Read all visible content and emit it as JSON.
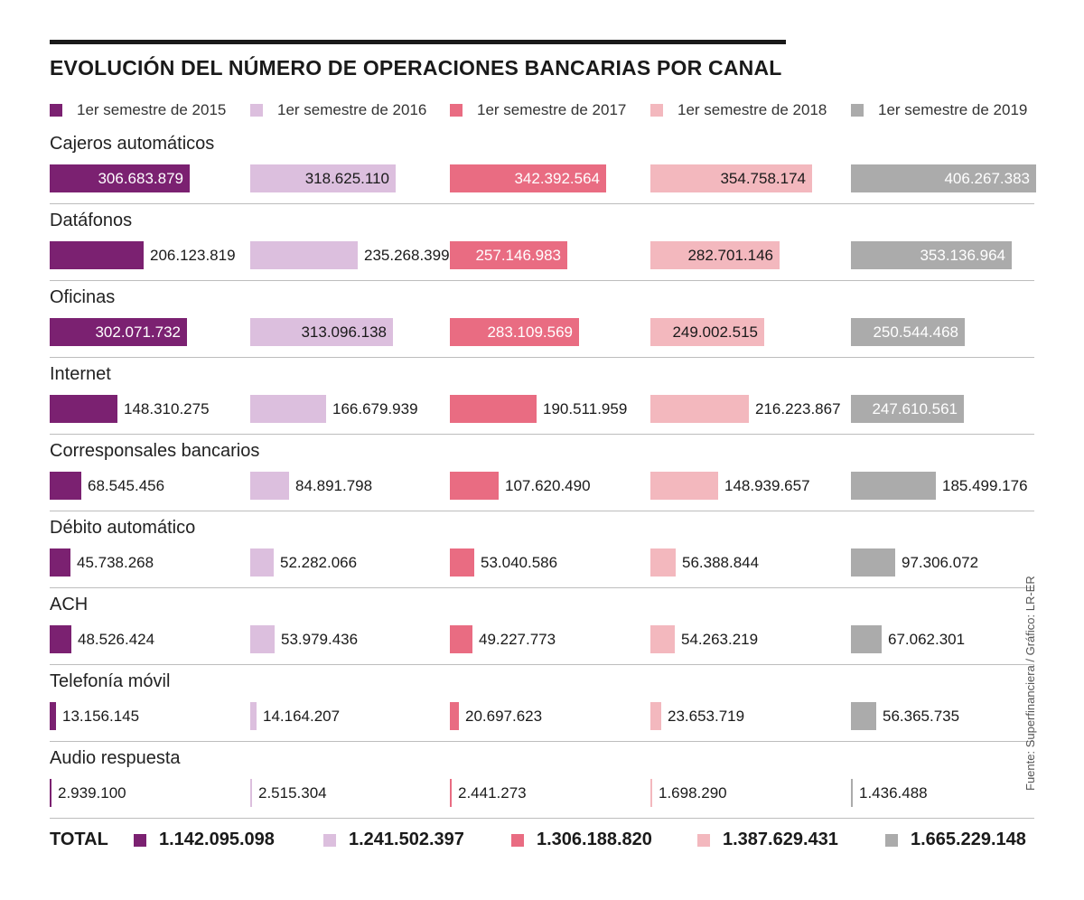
{
  "chart_data": {
    "type": "bar",
    "title": "EVOLUCIÓN DEL NÚMERO DE OPERACIONES BANCARIAS POR CANAL",
    "source": "Fuente: Superfinanciera / Gráfico: LR-ER",
    "colors": [
      "#7b2171",
      "#dcbfde",
      "#e96c82",
      "#f3b8be",
      "#ababab"
    ],
    "series": [
      {
        "name": "1er semestre de 2015"
      },
      {
        "name": "1er semestre de 2016"
      },
      {
        "name": "1er semestre de 2017"
      },
      {
        "name": "1er semestre de 2018"
      },
      {
        "name": "1er semestre de 2019"
      }
    ],
    "categories": [
      {
        "name": "Cajeros automáticos",
        "values": [
          306683879,
          318625110,
          342392564,
          354758174,
          406267383
        ],
        "labels": [
          "306.683.879",
          "318.625.110",
          "342.392.564",
          "354.758.174",
          "406.267.383"
        ]
      },
      {
        "name": "Datáfonos",
        "values": [
          206123819,
          235268399,
          257146983,
          282701146,
          353136964
        ],
        "labels": [
          "206.123.819",
          "235.268.399",
          "257.146.983",
          "282.701.146",
          "353.136.964"
        ]
      },
      {
        "name": "Oficinas",
        "values": [
          302071732,
          313096138,
          283109569,
          249002515,
          250544468
        ],
        "labels": [
          "302.071.732",
          "313.096.138",
          "283.109.569",
          "249.002.515",
          "250.544.468"
        ]
      },
      {
        "name": "Internet",
        "values": [
          148310275,
          166679939,
          190511959,
          216223867,
          247610561
        ],
        "labels": [
          "148.310.275",
          "166.679.939",
          "190.511.959",
          "216.223.867",
          "247.610.561"
        ]
      },
      {
        "name": "Corresponsales bancarios",
        "values": [
          68545456,
          84891798,
          107620490,
          148939657,
          185499176
        ],
        "labels": [
          "68.545.456",
          "84.891.798",
          "107.620.490",
          "148.939.657",
          "185.499.176"
        ]
      },
      {
        "name": "Débito automático",
        "values": [
          45738268,
          52282066,
          53040586,
          56388844,
          97306072
        ],
        "labels": [
          "45.738.268",
          "52.282.066",
          "53.040.586",
          "56.388.844",
          "97.306.072"
        ]
      },
      {
        "name": "ACH",
        "values": [
          48526424,
          53979436,
          49227773,
          54263219,
          67062301
        ],
        "labels": [
          "48.526.424",
          "53.979.436",
          "49.227.773",
          "54.263.219",
          "67.062.301"
        ]
      },
      {
        "name": "Telefonía móvil",
        "values": [
          13156145,
          14164207,
          20697623,
          23653719,
          56365735
        ],
        "labels": [
          "13.156.145",
          "14.164.207",
          "20.697.623",
          "23.653.719",
          "56.365.735"
        ]
      },
      {
        "name": "Audio respuesta",
        "values": [
          2939100,
          2515304,
          2441273,
          1698290,
          1436488
        ],
        "labels": [
          "2.939.100",
          "2.515.304",
          "2.441.273",
          "1.698.290",
          "1.436.488"
        ]
      }
    ],
    "total": {
      "label": "TOTAL",
      "values": [
        1142095098,
        1241502397,
        1306188820,
        1387629431,
        1665229148
      ],
      "labels": [
        "1.142.095.098",
        "1.241.502.397",
        "1.306.188.820",
        "1.387.629.431",
        "1.665.229.148"
      ]
    }
  }
}
